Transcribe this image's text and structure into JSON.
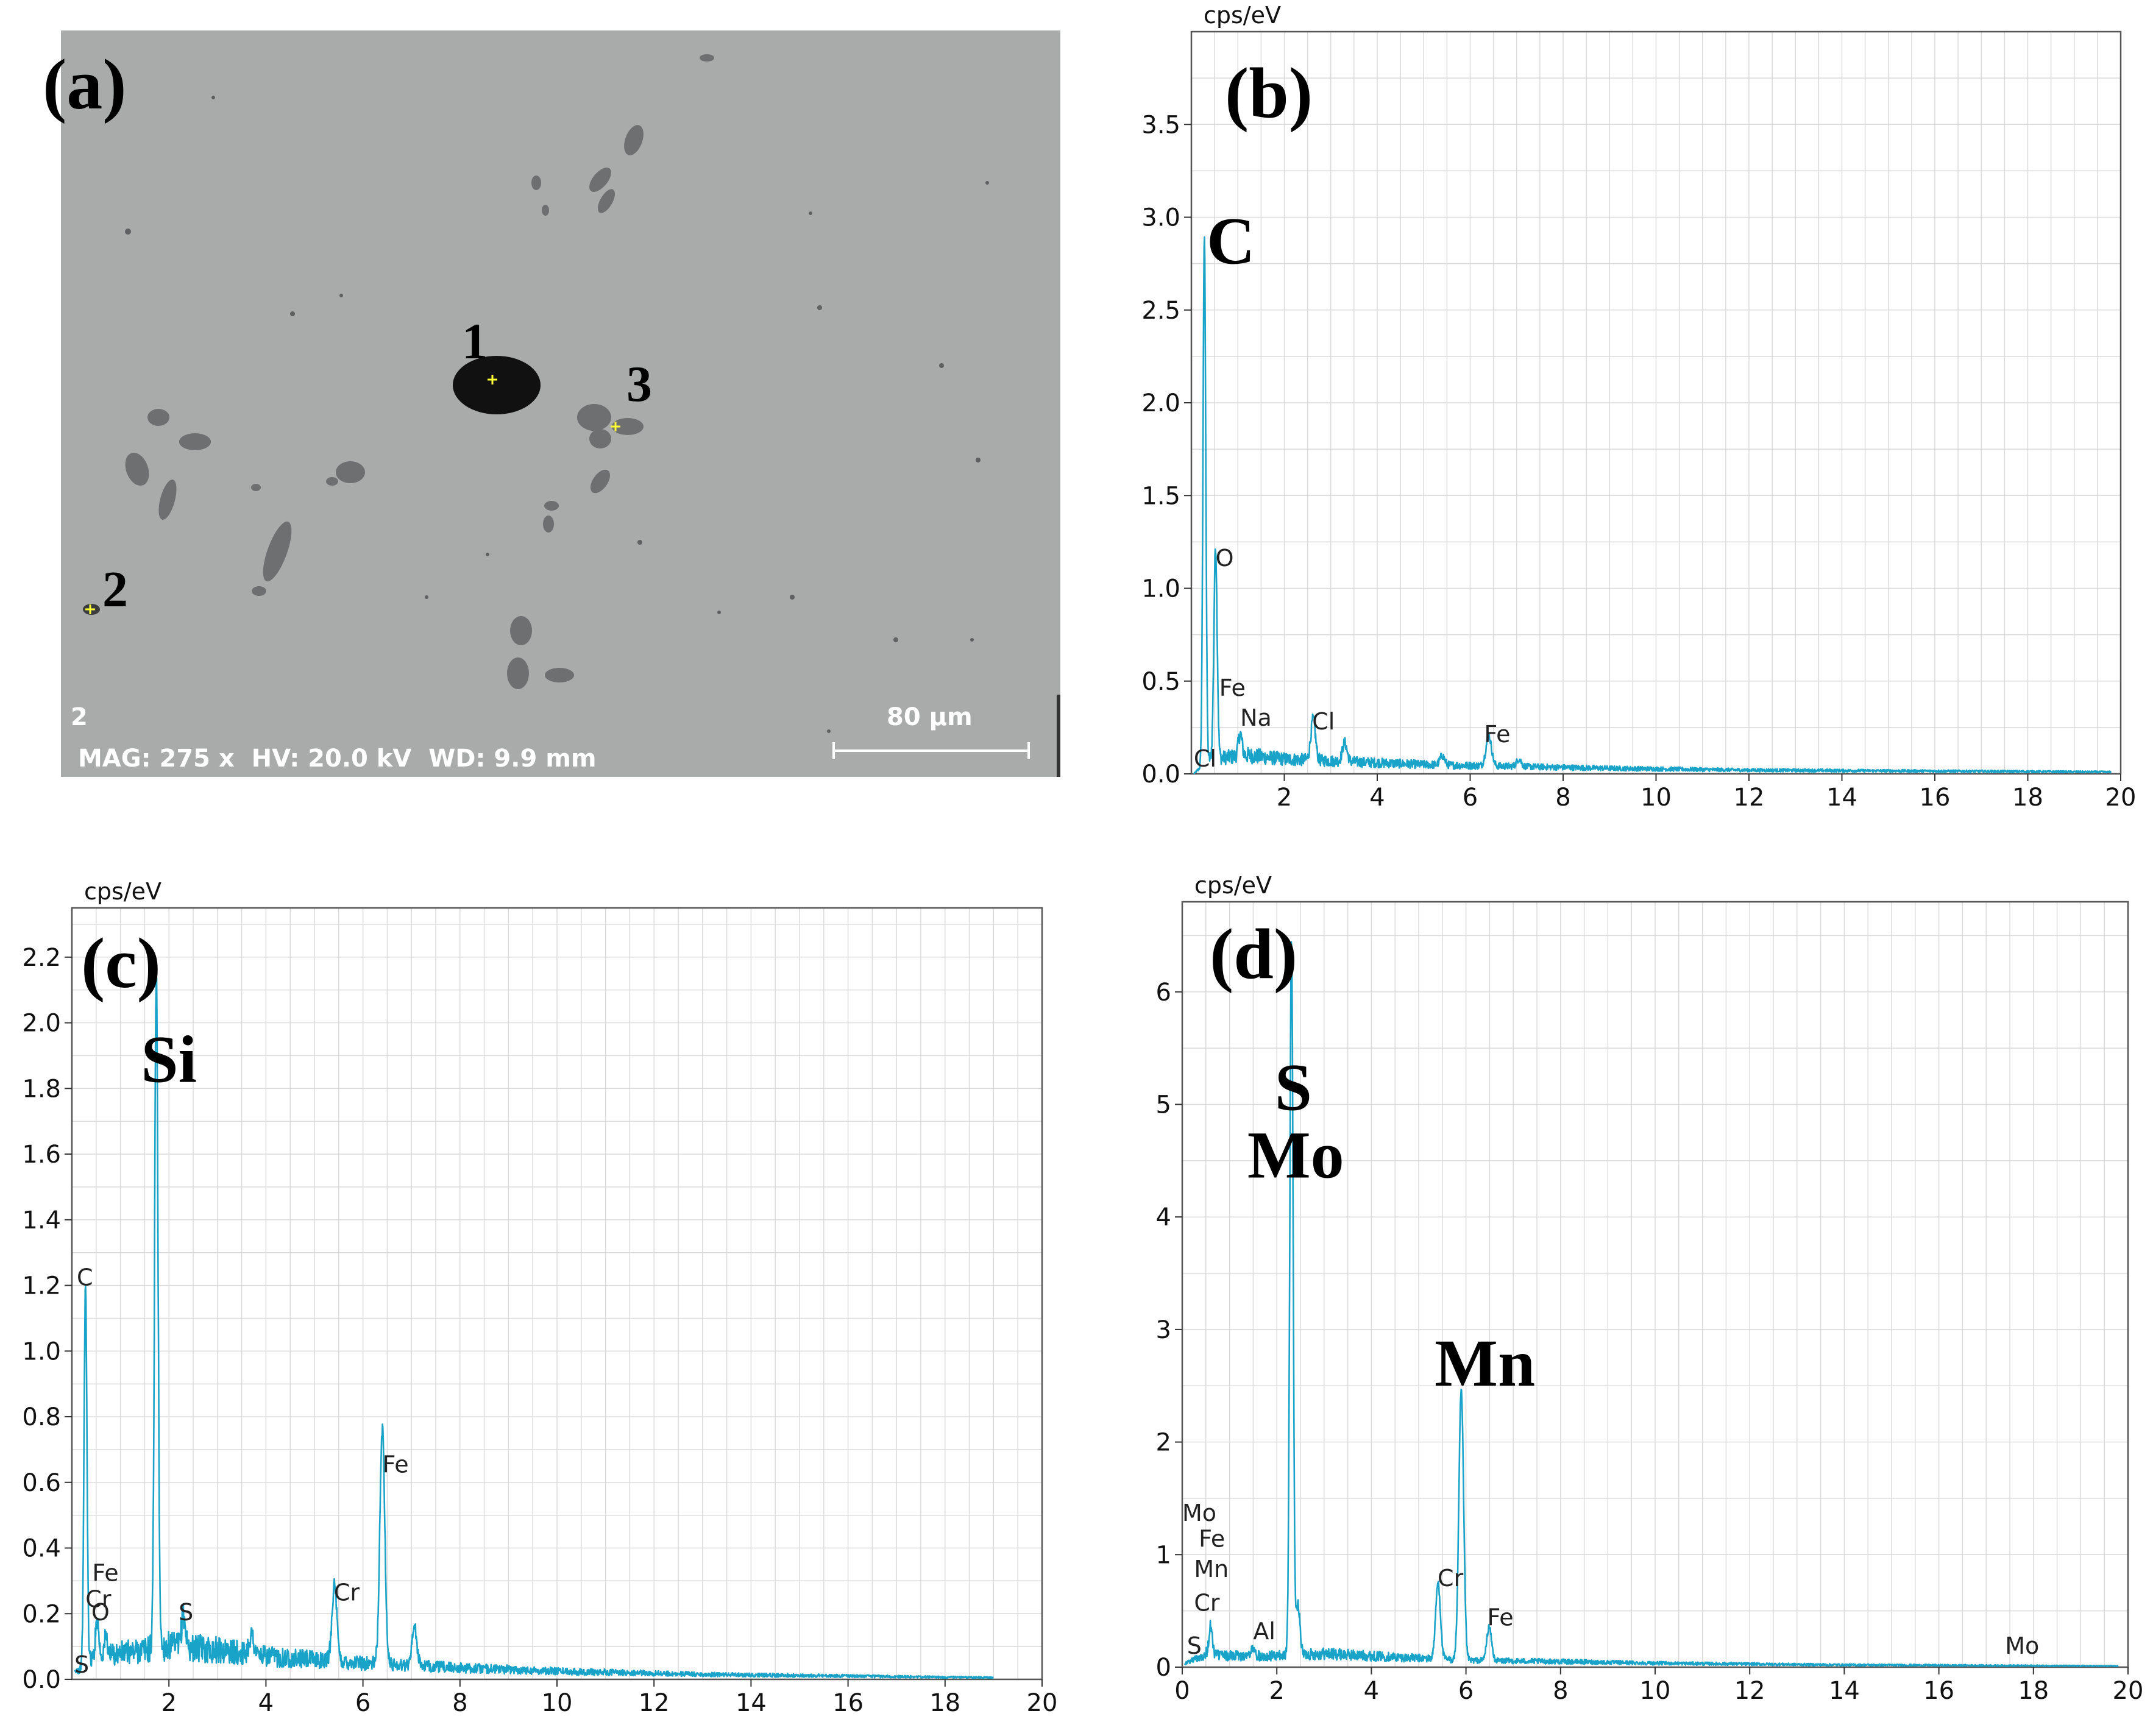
{
  "panel_a": {
    "label": "(a)",
    "image_id": "2",
    "info_line": "MAG: 275 x  HV: 20.0 kV  WD: 9.9 mm",
    "scale_bar": "80 µm",
    "points": [
      "1",
      "2",
      "3"
    ],
    "colors": {
      "background": "#a9abab",
      "particle": "#6d6f70",
      "void": "#111111",
      "marker": "#ffff33"
    }
  },
  "chart_data": [
    {
      "panel": "(b)",
      "type": "line",
      "unit_label": "cps/eV",
      "xlim": [
        0,
        20
      ],
      "ylim": [
        0,
        4.0
      ],
      "xticks": [
        2,
        4,
        6,
        8,
        10,
        12,
        14,
        16,
        18,
        20
      ],
      "yticks": [
        0.0,
        0.5,
        1.0,
        1.5,
        2.0,
        2.5,
        3.0,
        3.5
      ],
      "ytick_labels": [
        "0.0",
        "0.5",
        "1.0",
        "1.5",
        "2.0",
        "2.5",
        "3.0",
        "3.5"
      ],
      "grid": true,
      "color": "#1aa3c8",
      "baseline": [
        [
          0.05,
          0.0
        ],
        [
          0.4,
          0.08
        ],
        [
          1.2,
          0.1
        ],
        [
          2.0,
          0.08
        ],
        [
          3.0,
          0.07
        ],
        [
          5.0,
          0.05
        ],
        [
          7.0,
          0.04
        ],
        [
          9.0,
          0.03
        ],
        [
          12.0,
          0.02
        ],
        [
          16.0,
          0.015
        ],
        [
          19.8,
          0.01
        ]
      ],
      "peaks": [
        [
          0.28,
          2.85,
          0.03
        ],
        [
          0.52,
          1.15,
          0.035
        ],
        [
          1.05,
          0.12,
          0.04
        ],
        [
          2.62,
          0.22,
          0.05
        ],
        [
          3.3,
          0.1,
          0.05
        ],
        [
          5.4,
          0.05,
          0.05
        ],
        [
          6.4,
          0.16,
          0.06
        ],
        [
          7.05,
          0.04,
          0.05
        ]
      ],
      "peak_labels": [
        {
          "text": "Cl",
          "x": 0.05,
          "y": 0.04
        },
        {
          "text": "O",
          "x": 0.52,
          "y": 1.12
        },
        {
          "text": "Fe",
          "x": 0.6,
          "y": 0.42
        },
        {
          "text": "Na",
          "x": 1.05,
          "y": 0.26
        },
        {
          "text": "Cl",
          "x": 2.6,
          "y": 0.24
        },
        {
          "text": "Fe",
          "x": 6.3,
          "y": 0.17
        }
      ],
      "major_labels": [
        {
          "text": "C",
          "x": 0.85,
          "y": 2.75
        }
      ]
    },
    {
      "panel": "(c)",
      "type": "line",
      "unit_label": "cps/eV",
      "xlim": [
        0,
        20
      ],
      "ylim": [
        0,
        2.35
      ],
      "xticks": [
        2,
        4,
        6,
        8,
        10,
        12,
        14,
        16,
        18,
        20
      ],
      "yticks": [
        0.0,
        0.2,
        0.4,
        0.6,
        0.8,
        1.0,
        1.2,
        1.4,
        1.6,
        1.8,
        2.0,
        2.2
      ],
      "ytick_labels": [
        "0.0",
        "0.2",
        "0.4",
        "0.6",
        "0.8",
        "1.0",
        "1.2",
        "1.4",
        "1.6",
        "1.8",
        "2.0",
        "2.2"
      ],
      "grid": true,
      "color": "#1aa3c8",
      "baseline": [
        [
          0.05,
          0.02
        ],
        [
          0.4,
          0.06
        ],
        [
          1.0,
          0.08
        ],
        [
          2.0,
          0.1
        ],
        [
          3.0,
          0.09
        ],
        [
          4.0,
          0.07
        ],
        [
          5.0,
          0.06
        ],
        [
          6.0,
          0.05
        ],
        [
          8.0,
          0.035
        ],
        [
          10.0,
          0.025
        ],
        [
          13.0,
          0.015
        ],
        [
          16.0,
          0.01
        ],
        [
          19.0,
          0.005
        ]
      ],
      "peaks": [
        [
          0.28,
          1.15,
          0.03
        ],
        [
          0.52,
          0.12,
          0.035
        ],
        [
          0.7,
          0.06,
          0.035
        ],
        [
          1.74,
          2.05,
          0.035
        ],
        [
          2.3,
          0.1,
          0.04
        ],
        [
          3.7,
          0.06,
          0.05
        ],
        [
          5.41,
          0.23,
          0.05
        ],
        [
          6.4,
          0.72,
          0.05
        ],
        [
          7.06,
          0.12,
          0.05
        ]
      ],
      "peak_labels": [
        {
          "text": "C",
          "x": 0.1,
          "y": 1.2
        },
        {
          "text": "Fe",
          "x": 0.42,
          "y": 0.3
        },
        {
          "text": "Cr",
          "x": 0.28,
          "y": 0.22
        },
        {
          "text": "O",
          "x": 0.4,
          "y": 0.18
        },
        {
          "text": "S",
          "x": 0.05,
          "y": 0.02
        },
        {
          "text": "S",
          "x": 2.2,
          "y": 0.18
        },
        {
          "text": "Cr",
          "x": 5.4,
          "y": 0.24
        },
        {
          "text": "Fe",
          "x": 6.4,
          "y": 0.63
        }
      ],
      "major_labels": [
        {
          "text": "Si",
          "x": 2.0,
          "y": 1.82
        }
      ]
    },
    {
      "panel": "(d)",
      "type": "line",
      "unit_label": "cps/eV",
      "xlim": [
        0,
        20
      ],
      "ylim": [
        0,
        6.8
      ],
      "xticks": [
        0,
        2,
        4,
        6,
        8,
        10,
        12,
        14,
        16,
        18,
        20
      ],
      "yticks": [
        0,
        1,
        2,
        3,
        4,
        5,
        6
      ],
      "ytick_labels": [
        "0",
        "1",
        "2",
        "3",
        "4",
        "5",
        "6"
      ],
      "grid": true,
      "color": "#1aa3c8",
      "baseline": [
        [
          0.05,
          0.03
        ],
        [
          0.5,
          0.12
        ],
        [
          1.0,
          0.1
        ],
        [
          2.0,
          0.1
        ],
        [
          3.0,
          0.12
        ],
        [
          4.0,
          0.1
        ],
        [
          5.0,
          0.08
        ],
        [
          6.0,
          0.06
        ],
        [
          8.0,
          0.05
        ],
        [
          10.0,
          0.035
        ],
        [
          14.0,
          0.02
        ],
        [
          19.8,
          0.01
        ]
      ],
      "peaks": [
        [
          0.6,
          0.25,
          0.035
        ],
        [
          1.49,
          0.06,
          0.04
        ],
        [
          2.31,
          6.35,
          0.035
        ],
        [
          2.45,
          0.45,
          0.04
        ],
        [
          5.41,
          0.68,
          0.05
        ],
        [
          5.9,
          2.4,
          0.05
        ],
        [
          6.49,
          0.3,
          0.05
        ]
      ],
      "peak_labels": [
        {
          "text": "Mo",
          "x": 0.0,
          "y": 1.3
        },
        {
          "text": "Fe",
          "x": 0.35,
          "y": 1.07
        },
        {
          "text": "Mn",
          "x": 0.25,
          "y": 0.8
        },
        {
          "text": "Cr",
          "x": 0.25,
          "y": 0.5
        },
        {
          "text": "S",
          "x": 0.1,
          "y": 0.12
        },
        {
          "text": "Al",
          "x": 1.5,
          "y": 0.25
        },
        {
          "text": "Cr",
          "x": 5.4,
          "y": 0.72
        },
        {
          "text": "Fe",
          "x": 6.45,
          "y": 0.37
        },
        {
          "text": "Mo",
          "x": 17.4,
          "y": 0.12
        }
      ],
      "major_labels": [
        {
          "text": "S",
          "x": 2.35,
          "y": 4.95
        },
        {
          "text": "Mo",
          "x": 2.4,
          "y": 4.35
        },
        {
          "text": "Mn",
          "x": 6.4,
          "y": 2.5
        }
      ]
    }
  ]
}
